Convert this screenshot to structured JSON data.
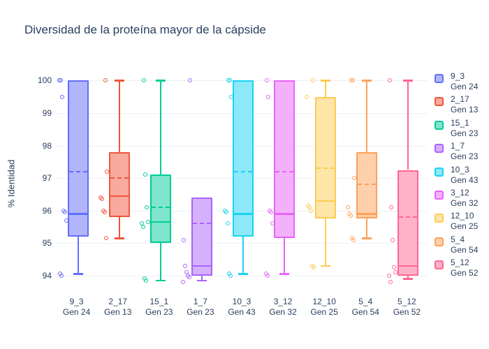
{
  "title": "Diversidad de la proteína mayor de la cápside",
  "chart_data": {
    "type": "box",
    "title": "Diversidad de la proteína mayor de la cápside",
    "xlabel": "",
    "ylabel": "% Identidad",
    "ylim": [
      93.5,
      100.16
    ],
    "yticks": [
      100,
      99,
      98,
      97,
      96,
      95,
      94
    ],
    "grid": true,
    "legend_position": "right",
    "boxmean_dashed": true,
    "boxpoints": "all",
    "text_color": "#2a3f5f",
    "grid_color": "#ecf0f8",
    "categories": [
      "9_3",
      "2_17",
      "15_1",
      "1_7",
      "10_3",
      "3_12",
      "12_10",
      "5_4",
      "5_12"
    ],
    "series": [
      {
        "name": "9_3",
        "gen": "Gen 24",
        "color": "#636EFA",
        "fill": "#B1B6FC",
        "whisker_low": 94.05,
        "q1": 95.2,
        "median": 95.9,
        "q3": 100.0,
        "whisker_high": 100.0,
        "mean": 97.2,
        "points": [
          100,
          100,
          99.5,
          96.0,
          95.95,
          95.7,
          94.05,
          94.0
        ]
      },
      {
        "name": "2_17",
        "gen": "Gen 13",
        "color": "#EF553B",
        "fill": "#F7AA9D",
        "whisker_low": 95.15,
        "q1": 95.8,
        "median": 96.45,
        "q3": 97.8,
        "whisker_high": 100.0,
        "mean": 97.0,
        "points": [
          100,
          97.2,
          96.4,
          96.35,
          96.0,
          95.95,
          95.15
        ]
      },
      {
        "name": "15_1",
        "gen": "Gen 23",
        "color": "#00CC96",
        "fill": "#7FE5CB",
        "whisker_low": 93.85,
        "q1": 95.0,
        "median": 95.65,
        "q3": 97.1,
        "whisker_high": 100.0,
        "mean": 96.1,
        "points": [
          100,
          97.1,
          96.1,
          95.65,
          95.6,
          95.5,
          93.9,
          93.85
        ]
      },
      {
        "name": "1_7",
        "gen": "Gen 23",
        "color": "#AB63FA",
        "fill": "#D5B1FC",
        "whisker_low": 93.85,
        "q1": 94.0,
        "median": 94.3,
        "q3": 96.4,
        "whisker_high": 96.4,
        "mean": 95.6,
        "points": [
          100,
          95.1,
          94.3,
          94.1,
          94.0,
          93.95,
          93.8
        ]
      },
      {
        "name": "10_3",
        "gen": "Gen 43",
        "color": "#19D3F3",
        "fill": "#8CE9F9",
        "whisker_low": 94.05,
        "q1": 95.2,
        "median": 95.9,
        "q3": 100.0,
        "whisker_high": 100.0,
        "mean": 97.2,
        "points": [
          100,
          100,
          99.5,
          96.0,
          95.95,
          95.6,
          94.05,
          94.0
        ]
      },
      {
        "name": "3_12",
        "gen": "Gen 32",
        "color": "#E763FA",
        "fill": "#F3B1FC",
        "whisker_low": 94.05,
        "q1": 95.15,
        "median": 95.9,
        "q3": 100.0,
        "whisker_high": 100.0,
        "mean": 97.2,
        "points": [
          100,
          99.5,
          96.0,
          95.95,
          95.6,
          94.05,
          94.0
        ]
      },
      {
        "name": "12_10",
        "gen": "Gen 25",
        "color": "#FECB52",
        "fill": "#FEE5A8",
        "whisker_low": 94.3,
        "q1": 95.75,
        "median": 96.3,
        "q3": 99.5,
        "whisker_high": 100.0,
        "mean": 97.3,
        "points": [
          100,
          99.5,
          96.15,
          96.1,
          96.0,
          94.3,
          94.25
        ]
      },
      {
        "name": "5_4",
        "gen": "Gen 54",
        "color": "#FFA15A",
        "fill": "#FFD0AC",
        "whisker_low": 95.15,
        "q1": 95.75,
        "median": 95.9,
        "q3": 97.8,
        "whisker_high": 100.0,
        "mean": 96.8,
        "points": [
          100,
          100,
          97.0,
          96.1,
          95.9,
          95.85,
          95.15,
          95.1
        ]
      },
      {
        "name": "5_12",
        "gen": "Gen 52",
        "color": "#FF6692",
        "fill": "#FFB2C8",
        "whisker_low": 93.9,
        "q1": 94.0,
        "median": 94.3,
        "q3": 97.25,
        "whisker_high": 100.0,
        "mean": 95.8,
        "points": [
          100,
          96.1,
          95.1,
          94.25,
          94.1,
          94.0,
          93.8
        ]
      }
    ]
  }
}
